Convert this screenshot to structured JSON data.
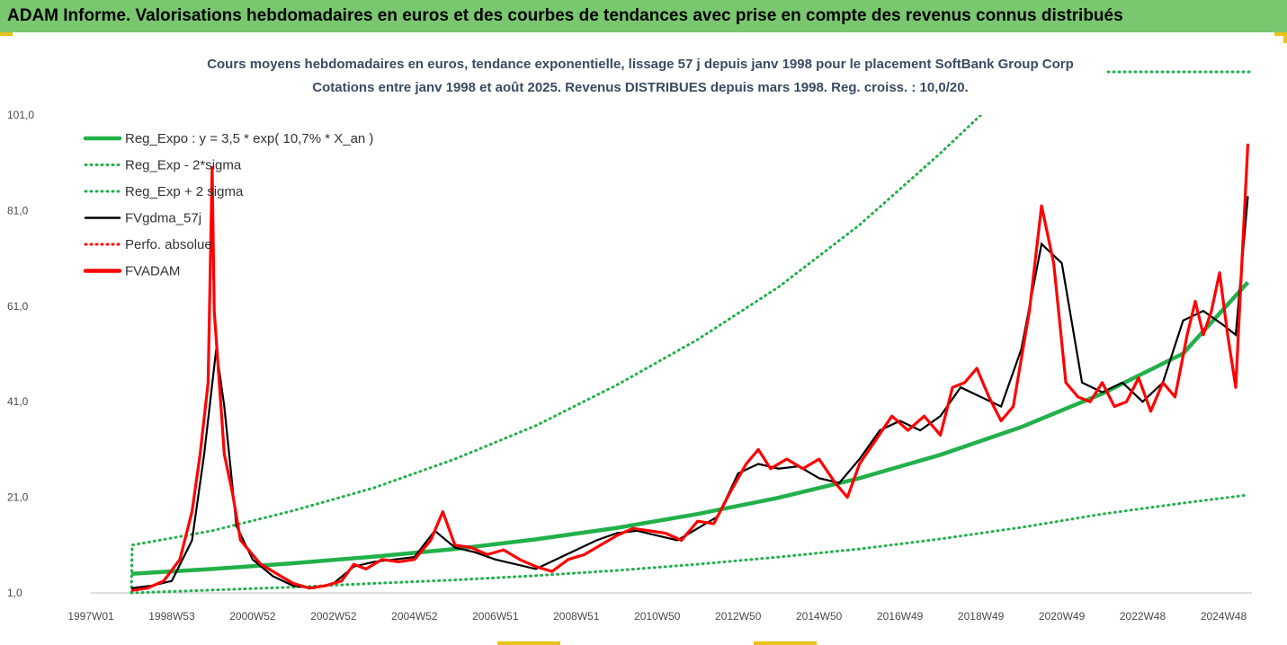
{
  "header": {
    "title": "ADAM Informe. Valorisations hebdomadaires en euros et des courbes de tendances avec prise en compte des revenus connus distribués"
  },
  "colors": {
    "header_bg": "#79c76f",
    "trend": "#22b04a",
    "band": "#22b04a",
    "ma": "#000000",
    "fvadam": "#ff0000",
    "accent_corner": "#e8c21a"
  },
  "chart_data": {
    "type": "line",
    "title": "Cours moyens hebdomadaires en euros, tendance exponentielle, lissage 57 j depuis janv 1998 pour le placement SoftBank Group Corp",
    "subtitle": "Cotations entre janv 1998 et août 2025. Revenus DISTRIBUES depuis mars 1998. Reg. croiss. : 10,0/20.",
    "xlabel": "",
    "ylabel": "",
    "ylim": [
      1.0,
      101.0
    ],
    "xlim": [
      1997.0,
      2025.7
    ],
    "y_ticks": [
      "1,0",
      "21,0",
      "41,0",
      "61,0",
      "81,0",
      "101,0"
    ],
    "x_tick_labels": [
      "1997W01",
      "1998W53",
      "2000W52",
      "2002W52",
      "2004W52",
      "2006W51",
      "2008W51",
      "2010W50",
      "2012W50",
      "2014W50",
      "2016W49",
      "2018W49",
      "2020W49",
      "2022W48",
      "2024W48"
    ],
    "x_tick_years": [
      1997.0,
      1999.0,
      2001.0,
      2003.0,
      2005.0,
      2007.0,
      2009.0,
      2011.0,
      2013.0,
      2015.0,
      2017.0,
      2019.0,
      2021.0,
      2023.0,
      2025.0
    ],
    "legend_placement": "top-left",
    "legend": [
      {
        "label": "Reg_Expo : y = 3,5 * exp( 10,7% *  X_an )",
        "style": "solid-thick",
        "color": "#22b04a"
      },
      {
        "label": "Reg_Exp - 2*sigma",
        "style": "dotted",
        "color": "#22b04a"
      },
      {
        "label": "Reg_Exp + 2 sigma",
        "style": "dotted",
        "color": "#22b04a"
      },
      {
        "label": "FVgdma_57j",
        "style": "solid",
        "color": "#000000"
      },
      {
        "label": "Perfo. absolue",
        "style": "dotted",
        "color": "#ff0000"
      },
      {
        "label": "FVADAM",
        "style": "solid-thick",
        "color": "#ff0000"
      }
    ],
    "series": [
      {
        "name": "Reg_Expo : y = 3,5 * exp( 10,7% *  X_an )",
        "x": [
          1998.0,
          2000.0,
          2002.0,
          2004.0,
          2006.0,
          2008.0,
          2010.0,
          2012.0,
          2014.0,
          2016.0,
          2018.0,
          2020.0,
          2022.0,
          2024.0,
          2025.6
        ],
        "y": [
          5.0,
          6.0,
          7.2,
          8.6,
          10.2,
          12.2,
          14.6,
          17.5,
          20.9,
          25.0,
          29.9,
          35.7,
          42.7,
          51.1,
          66.0
        ]
      },
      {
        "name": "Reg_Exp - 2*sigma",
        "x": [
          1998.0,
          2000.0,
          2002.0,
          2004.0,
          2006.0,
          2008.0,
          2010.0,
          2012.0,
          2014.0,
          2016.0,
          2018.0,
          2020.0,
          2022.0,
          2024.0,
          2025.6
        ],
        "y": [
          1.0,
          1.6,
          2.2,
          3.0,
          3.7,
          4.6,
          5.7,
          7.0,
          8.5,
          10.2,
          12.3,
          14.7,
          17.5,
          19.8,
          21.5
        ]
      },
      {
        "name": "Reg_Exp + 2 sigma",
        "x": [
          1998.0,
          1998.02,
          2000.0,
          2002.0,
          2004.0,
          2006.0,
          2008.0,
          2010.0,
          2012.0,
          2014.0,
          2016.0,
          2018.0,
          2019.0
        ],
        "y": [
          1.0,
          11.0,
          14.0,
          18.2,
          23.0,
          29.0,
          36.0,
          44.5,
          54.0,
          65.0,
          78.0,
          93.0,
          101.0
        ]
      },
      {
        "name": "FVgdma_57j",
        "x": [
          1998.0,
          1998.5,
          1999.0,
          1999.5,
          1999.8,
          2000.1,
          2000.3,
          2000.6,
          2001.0,
          2001.5,
          2002.0,
          2002.5,
          2003.0,
          2003.5,
          2004.0,
          2004.5,
          2005.0,
          2005.5,
          2006.0,
          2006.5,
          2007.0,
          2007.5,
          2008.0,
          2008.5,
          2009.0,
          2009.5,
          2010.0,
          2010.5,
          2011.0,
          2011.5,
          2012.0,
          2012.5,
          2013.0,
          2013.5,
          2014.0,
          2014.5,
          2015.0,
          2015.5,
          2016.0,
          2016.5,
          2017.0,
          2017.5,
          2018.0,
          2018.5,
          2019.0,
          2019.5,
          2020.0,
          2020.5,
          2021.0,
          2021.5,
          2022.0,
          2022.5,
          2023.0,
          2023.5,
          2024.0,
          2024.5,
          2025.0,
          2025.3,
          2025.6
        ],
        "y": [
          2.0,
          2.5,
          3.5,
          12.0,
          30.0,
          52.0,
          40.0,
          15.0,
          8.0,
          4.5,
          2.5,
          2.0,
          3.0,
          6.5,
          7.5,
          8.0,
          8.5,
          14.0,
          10.5,
          9.5,
          8.0,
          7.0,
          6.0,
          8.0,
          10.0,
          12.0,
          13.5,
          14.0,
          13.0,
          12.0,
          14.5,
          17.0,
          26.0,
          28.0,
          27.0,
          27.5,
          25.0,
          24.0,
          29.0,
          35.0,
          37.0,
          35.0,
          38.0,
          44.0,
          42.0,
          40.0,
          52.0,
          74.0,
          70.0,
          45.0,
          43.0,
          45.0,
          41.0,
          45.0,
          58.0,
          60.0,
          57.0,
          55.0,
          84.0
        ]
      },
      {
        "name": "FVADAM",
        "x": [
          1998.0,
          1998.4,
          1998.8,
          1999.2,
          1999.5,
          1999.7,
          1999.9,
          2000.0,
          2000.05,
          2000.15,
          2000.3,
          2000.5,
          2000.7,
          2000.9,
          2001.2,
          2001.6,
          2002.0,
          2002.4,
          2002.8,
          2003.2,
          2003.5,
          2003.8,
          2004.2,
          2004.6,
          2005.0,
          2005.4,
          2005.7,
          2006.0,
          2006.4,
          2006.8,
          2007.2,
          2007.6,
          2008.0,
          2008.4,
          2008.8,
          2009.2,
          2009.6,
          2010.0,
          2010.4,
          2010.8,
          2011.2,
          2011.6,
          2012.0,
          2012.4,
          2012.8,
          2013.2,
          2013.5,
          2013.8,
          2014.2,
          2014.6,
          2015.0,
          2015.4,
          2015.7,
          2016.0,
          2016.4,
          2016.8,
          2017.2,
          2017.6,
          2018.0,
          2018.3,
          2018.6,
          2018.9,
          2019.2,
          2019.5,
          2019.8,
          2020.2,
          2020.5,
          2020.8,
          2021.1,
          2021.4,
          2021.7,
          2022.0,
          2022.3,
          2022.6,
          2022.9,
          2023.2,
          2023.5,
          2023.8,
          2024.1,
          2024.3,
          2024.5,
          2024.7,
          2024.9,
          2025.1,
          2025.3,
          2025.45,
          2025.6
        ],
        "y": [
          1.5,
          2.0,
          3.5,
          8.0,
          18.0,
          30.0,
          45.0,
          90.0,
          60.0,
          48.0,
          30.0,
          22.0,
          12.0,
          10.0,
          7.0,
          5.0,
          3.0,
          2.0,
          2.5,
          3.5,
          7.0,
          6.0,
          8.0,
          7.5,
          8.0,
          12.0,
          18.0,
          11.0,
          10.5,
          9.0,
          10.0,
          8.0,
          6.5,
          5.5,
          8.0,
          9.0,
          11.0,
          13.0,
          14.5,
          14.0,
          13.5,
          12.0,
          16.0,
          15.5,
          22.0,
          28.0,
          31.0,
          27.0,
          29.0,
          27.0,
          29.0,
          24.0,
          21.0,
          28.0,
          33.0,
          38.0,
          35.0,
          38.0,
          34.0,
          44.0,
          45.0,
          48.0,
          42.0,
          37.0,
          40.0,
          60.0,
          82.0,
          70.0,
          45.0,
          42.0,
          41.0,
          45.0,
          40.0,
          41.0,
          46.0,
          39.0,
          45.0,
          42.0,
          55.0,
          62.0,
          55.0,
          60.0,
          68.0,
          55.0,
          44.0,
          70.0,
          95.0
        ]
      }
    ]
  }
}
